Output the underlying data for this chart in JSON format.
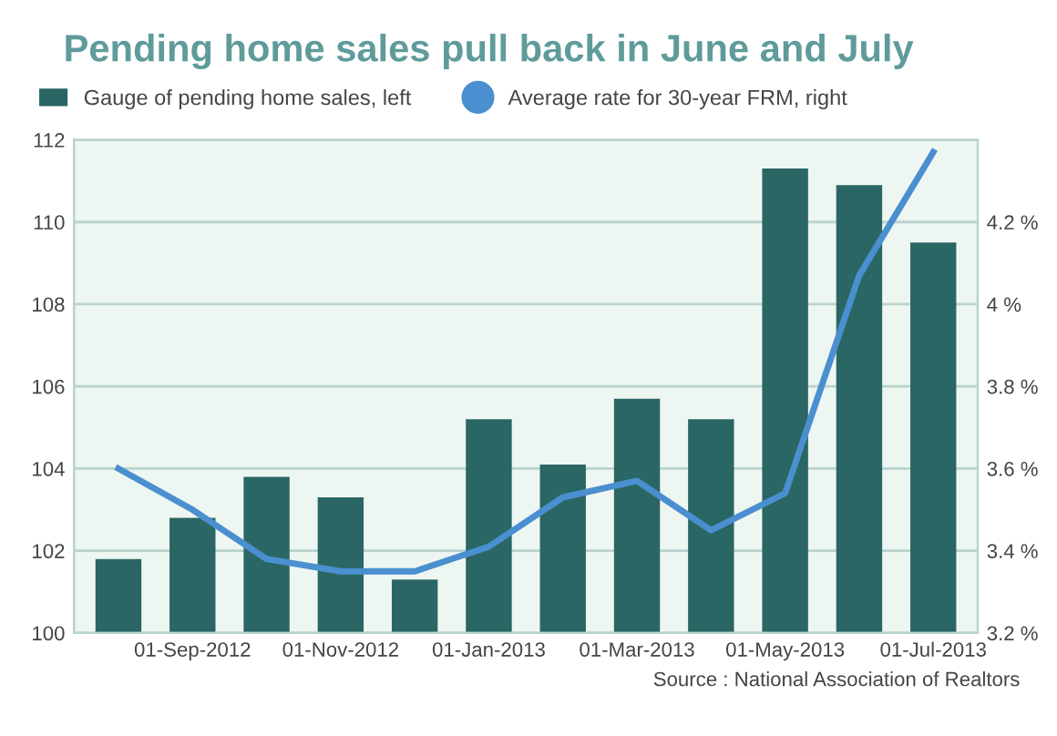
{
  "chart_data": {
    "type": "bar",
    "title": "Pending home sales pull back in June and July",
    "categories": [
      null,
      "01-Sep-2012",
      null,
      "01-Nov-2012",
      null,
      "01-Jan-2013",
      null,
      "01-Mar-2013",
      null,
      "01-May-2013",
      null,
      "01-Jul-2013"
    ],
    "series": [
      {
        "name": "Gauge of pending home sales, left",
        "color": "#2a6663",
        "values": [
          101.8,
          102.8,
          103.8,
          103.3,
          101.3,
          105.2,
          104.1,
          105.7,
          105.2,
          111.3,
          110.9,
          109.5
        ]
      },
      {
        "name": "Average rate for 30-year FRM, right",
        "type": "line",
        "axis": "y2",
        "color": "#4a8fd0",
        "values": [
          3.6,
          3.5,
          3.38,
          3.35,
          3.35,
          3.41,
          3.53,
          3.57,
          3.45,
          3.54,
          4.07,
          4.37
        ]
      }
    ],
    "ylim": [
      100,
      112
    ],
    "yticks": [
      100,
      102,
      104,
      106,
      108,
      110,
      112
    ],
    "y2lim": [
      3.2,
      4.4
    ],
    "y2ticks": [
      {
        "value": 3.2,
        "label": "3.2 %"
      },
      {
        "value": 3.4,
        "label": "3.4 %"
      },
      {
        "value": 3.6,
        "label": "3.6 %"
      },
      {
        "value": 3.8,
        "label": "3.8 %"
      },
      {
        "value": 4.0,
        "label": "4 %"
      },
      {
        "value": 4.2,
        "label": "4.2 %"
      }
    ],
    "grid": "y",
    "legend": "top",
    "marker": "none",
    "annotations": [
      "Source : National Association of Realtors"
    ]
  }
}
